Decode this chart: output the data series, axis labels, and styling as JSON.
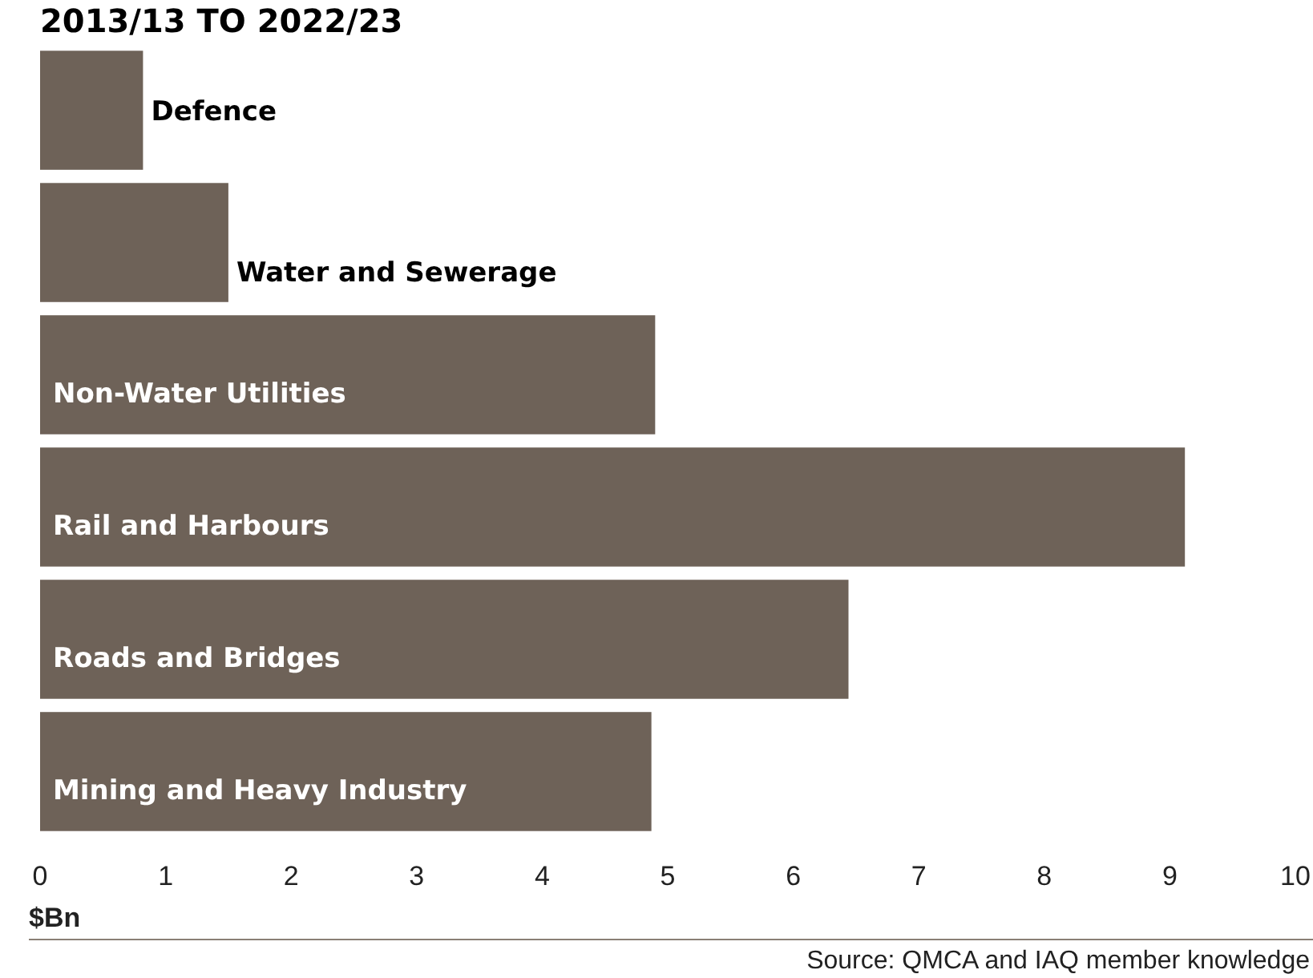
{
  "chart_data": {
    "type": "bar",
    "orientation": "horizontal",
    "title": "2013/13 TO 2022/23",
    "categories": [
      "Defence",
      "Water and Sewerage",
      "Non-Water Utilities",
      "Rail and Harbours",
      "Roads and Bridges",
      "Mining and Heavy Industry"
    ],
    "values": [
      0.82,
      1.5,
      4.9,
      9.12,
      6.44,
      4.87
    ],
    "color": "#6e6258",
    "xlim": [
      0,
      10
    ],
    "xticks": [
      0,
      1,
      2,
      3,
      4,
      5,
      6,
      7,
      8,
      9,
      10
    ],
    "xlabel": "$Bn",
    "grid": false,
    "annotations": [
      "Source: QMCA and IAQ member knowledge"
    ]
  }
}
